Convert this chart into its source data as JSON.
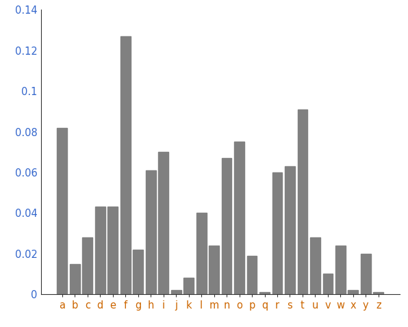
{
  "categories": [
    "a",
    "b",
    "c",
    "d",
    "e",
    "f",
    "g",
    "h",
    "i",
    "j",
    "k",
    "l",
    "m",
    "n",
    "o",
    "p",
    "q",
    "r",
    "s",
    "t",
    "u",
    "v",
    "w",
    "x",
    "y",
    "z"
  ],
  "values": [
    0.082,
    0.015,
    0.028,
    0.043,
    0.043,
    0.127,
    0.022,
    0.061,
    0.07,
    0.002,
    0.008,
    0.04,
    0.024,
    0.067,
    0.075,
    0.019,
    0.001,
    0.06,
    0.063,
    0.091,
    0.028,
    0.01,
    0.024,
    0.002,
    0.02,
    0.001
  ],
  "bar_color": "#808080",
  "bar_edgecolor": "#808080",
  "ylim": [
    0,
    0.14
  ],
  "yticks": [
    0,
    0.02,
    0.04,
    0.06,
    0.08,
    0.1,
    0.12,
    0.14
  ],
  "ytick_labels": [
    "0",
    "0.02",
    "0.04",
    "0.06",
    "0.08",
    "0.1",
    "0.12",
    "0.14"
  ],
  "tick_label_color_x": "#cc6600",
  "tick_label_color_y": "#3366cc",
  "spine_color": "#333333",
  "background_color": "#ffffff",
  "figsize": [
    5.96,
    4.78
  ],
  "dpi": 100
}
